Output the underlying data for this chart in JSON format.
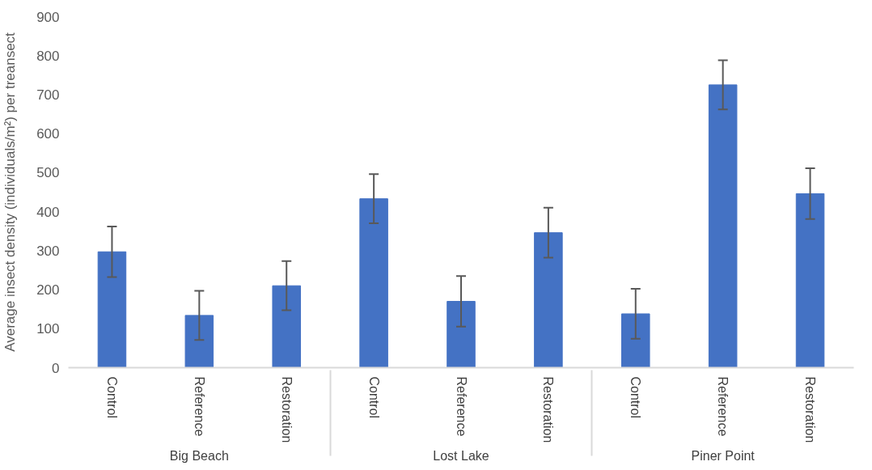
{
  "chart_data": {
    "type": "bar",
    "ylabel": "Average insect density (individuals/m²) per treansect",
    "categories": [
      "Big Beach",
      "Lost Lake",
      "Piner Point"
    ],
    "series": [
      {
        "name": "Control",
        "color": "#4472c4",
        "values": [
          297,
          433,
          138
        ],
        "errors": [
          65,
          63,
          64
        ]
      },
      {
        "name": "Reference",
        "color": "#4472c4",
        "values": [
          134,
          170,
          725
        ],
        "errors": [
          63,
          65,
          63
        ]
      },
      {
        "name": "Restoration",
        "color": "#4472c4",
        "values": [
          210,
          346,
          446
        ],
        "errors": [
          63,
          64,
          65
        ]
      }
    ],
    "ylim": [
      0,
      900
    ],
    "yticks": [
      0,
      100,
      200,
      300,
      400,
      500,
      600,
      700,
      800,
      900
    ],
    "grid": false
  }
}
